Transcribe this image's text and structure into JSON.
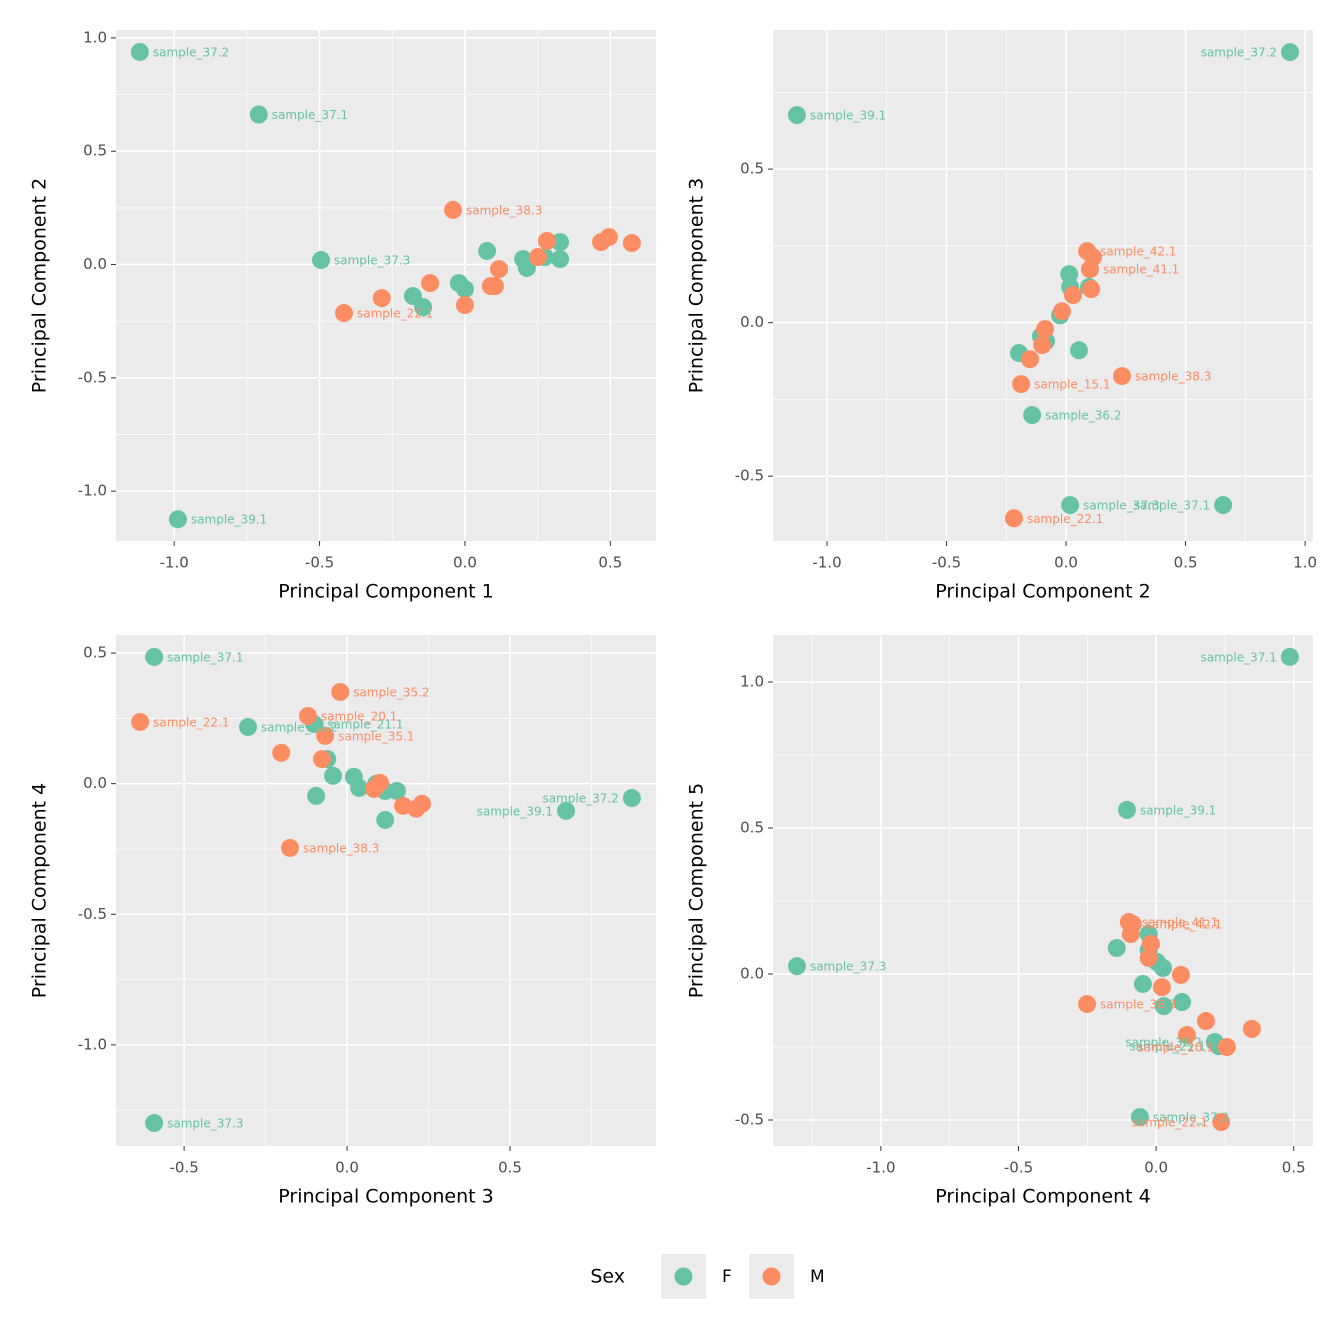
{
  "chart_data": [
    {
      "type": "scatter",
      "xlabel": "Principal Component 1",
      "ylabel": "Principal Component 2",
      "legend_title": "Sex",
      "xlim": [
        -1.2,
        0.657
      ],
      "ylim": [
        -1.22,
        1.035
      ],
      "xticks": [
        {
          "value": -1,
          "label": "-1.0"
        },
        -0.5,
        {
          "value": 0,
          "label": "0.0"
        },
        0.5
      ],
      "yticks": [
        {
          "value": -1,
          "label": "-1.0"
        },
        -0.5,
        {
          "value": 0,
          "label": "0.0"
        },
        0.5,
        {
          "value": 1,
          "label": "1.0"
        }
      ],
      "grid": true,
      "series": [
        {
          "name": "F",
          "color": "#66c2a5",
          "x": [
            -1.118,
            -0.709,
            -0.495,
            -0.987,
            -0.179,
            -0.144,
            -0.021,
            0.0,
            0.076,
            0.2,
            0.213,
            0.275,
            0.327,
            0.327
          ],
          "values": [
            0.938,
            0.662,
            0.02,
            -1.124,
            -0.139,
            -0.188,
            -0.082,
            -0.108,
            0.06,
            0.024,
            -0.015,
            0.033,
            0.099,
            0.024
          ],
          "labels": [
            "sample_37.2",
            "sample_37.1",
            "sample_37.3",
            "sample_39.1",
            null,
            null,
            null,
            null,
            null,
            null,
            null,
            null,
            null,
            null
          ]
        },
        {
          "name": "M",
          "color": "#fc8d62",
          "x": [
            -0.041,
            -0.416,
            -0.286,
            -0.12,
            0.0,
            0.089,
            0.103,
            0.117,
            0.251,
            0.282,
            0.468,
            0.495,
            0.574
          ],
          "values": [
            0.241,
            -0.214,
            -0.148,
            -0.082,
            -0.179,
            -0.095,
            -0.095,
            -0.02,
            0.033,
            0.104,
            0.099,
            0.121,
            0.095
          ],
          "labels": [
            "sample_38.3",
            "sample_22.1",
            null,
            null,
            null,
            null,
            null,
            null,
            null,
            null,
            null,
            null,
            null
          ]
        }
      ]
    },
    {
      "type": "scatter",
      "xlabel": "Principal Component 2",
      "ylabel": "Principal Component 3",
      "xlim": [
        -1.226,
        1.033
      ],
      "ylim": [
        -0.711,
        0.953
      ],
      "xticks": [
        {
          "value": -1,
          "label": "-1.0"
        },
        -0.5,
        {
          "value": 0,
          "label": "0.0"
        },
        0.5,
        {
          "value": 1,
          "label": "1.0"
        }
      ],
      "yticks": [
        -0.5,
        {
          "value": 0,
          "label": "0.0"
        },
        0.5
      ],
      "grid": true,
      "series": [
        {
          "name": "F",
          "color": "#66c2a5",
          "x": [
            0.937,
            -1.126,
            0.017,
            0.657,
            -0.142,
            -0.197,
            0.054,
            0.013,
            0.017,
            0.096,
            -0.025,
            -0.105,
            -0.084
          ],
          "values": [
            0.881,
            0.676,
            -0.594,
            -0.594,
            -0.301,
            -0.099,
            -0.09,
            0.158,
            0.116,
            0.116,
            0.024,
            -0.044,
            -0.06
          ],
          "labels": [
            "sample_37.2",
            "sample_39.1",
            "sample_37.3",
            "sample_37.1",
            "sample_36.2",
            null,
            null,
            null,
            null,
            null,
            null,
            null,
            null
          ]
        },
        {
          "name": "M",
          "color": "#fc8d62",
          "x": [
            0.088,
            0.113,
            0.1,
            0.105,
            0.029,
            -0.017,
            -0.088,
            -0.1,
            -0.151,
            -0.188,
            0.234,
            -0.218
          ],
          "values": [
            0.233,
            0.213,
            0.174,
            0.109,
            0.09,
            0.037,
            -0.021,
            -0.073,
            -0.119,
            -0.2,
            -0.174,
            -0.637
          ],
          "labels": [
            "sample_42.1",
            null,
            "sample_41.1",
            null,
            null,
            null,
            null,
            null,
            null,
            "sample_15.1",
            "sample_38.3",
            "sample_22.1"
          ]
        }
      ]
    },
    {
      "type": "scatter",
      "xlabel": "Principal Component 3",
      "ylabel": "Principal Component 4",
      "xlim": [
        -0.709,
        0.948
      ],
      "ylim": [
        -1.387,
        0.569
      ],
      "xticks": [
        -0.5,
        {
          "value": 0,
          "label": "0.0"
        },
        0.5
      ],
      "yticks": [
        {
          "value": -1,
          "label": "-1.0"
        },
        -0.5,
        {
          "value": 0,
          "label": "0.0"
        },
        0.5
      ],
      "grid": true,
      "series": [
        {
          "name": "F",
          "color": "#66c2a5",
          "x": [
            -0.592,
            -0.592,
            -0.304,
            -0.101,
            -0.061,
            -0.095,
            -0.043,
            0.021,
            0.037,
            0.089,
            0.117,
            0.153,
            0.117,
            0.672,
            0.874
          ],
          "values": [
            0.485,
            -1.299,
            0.217,
            0.228,
            0.094,
            -0.047,
            0.03,
            0.026,
            -0.016,
            -0.001,
            -0.028,
            -0.028,
            -0.139,
            -0.104,
            -0.055
          ],
          "labels": [
            "sample_37.1",
            "sample_37.3",
            "sample_36.2",
            "sample_21.1",
            null,
            null,
            null,
            null,
            null,
            null,
            null,
            null,
            null,
            "sample_39.1",
            "sample_37.2"
          ]
        },
        {
          "name": "M",
          "color": "#fc8d62",
          "x": [
            -0.635,
            -0.021,
            -0.12,
            -0.067,
            -0.202,
            -0.077,
            0.083,
            0.101,
            0.172,
            0.212,
            0.23,
            -0.175
          ],
          "values": [
            0.236,
            0.351,
            0.259,
            0.183,
            0.118,
            0.094,
            -0.02,
            0.003,
            -0.085,
            -0.096,
            -0.077,
            -0.246
          ],
          "labels": [
            "sample_22.1",
            "sample_35.2",
            "sample_20.1",
            "sample_35.1",
            null,
            null,
            null,
            null,
            null,
            null,
            null,
            "sample_38.3"
          ]
        }
      ]
    },
    {
      "type": "scatter",
      "xlabel": "Principal Component 4",
      "ylabel": "Principal Component 5",
      "xlim": [
        -1.392,
        0.57
      ],
      "ylim": [
        -0.589,
        1.161
      ],
      "xticks": [
        {
          "value": -1,
          "label": "-1.0"
        },
        -0.5,
        {
          "value": 0,
          "label": "0.0"
        },
        0.5
      ],
      "yticks": [
        -0.5,
        {
          "value": 0,
          "label": "0.0"
        },
        0.5,
        {
          "value": 1,
          "label": "1.0"
        }
      ],
      "grid": true,
      "series": [
        {
          "name": "F",
          "color": "#66c2a5",
          "x": [
            0.486,
            -0.106,
            -1.305,
            -0.059,
            -0.143,
            -0.027,
            -0.027,
            0.003,
            0.025,
            -0.048,
            0.028,
            0.094,
            0.213,
            0.228
          ],
          "values": [
            1.086,
            0.562,
            0.027,
            -0.49,
            0.089,
            0.137,
            0.082,
            0.041,
            0.021,
            -0.034,
            -0.11,
            -0.096,
            -0.233,
            -0.247
          ],
          "labels": [
            "sample_37.1",
            "sample_39.1",
            "sample_37.3",
            "sample_37.2",
            null,
            null,
            null,
            null,
            null,
            null,
            null,
            null,
            "sample_36.2",
            "sample_21.1"
          ]
        },
        {
          "name": "M",
          "color": "#fc8d62",
          "x": [
            -0.099,
            -0.085,
            -0.092,
            -0.019,
            -0.027,
            0.021,
            0.09,
            -0.251,
            0.181,
            0.348,
            0.112,
            0.257,
            0.236
          ],
          "values": [
            0.178,
            0.171,
            0.137,
            0.103,
            0.055,
            -0.045,
            -0.003,
            -0.103,
            -0.161,
            -0.188,
            -0.209,
            -0.25,
            -0.507
          ],
          "labels": [
            "sample_41.1",
            "sample_42.1",
            null,
            null,
            null,
            null,
            null,
            "sample_38.3",
            null,
            null,
            null,
            "sample_20.1",
            "sample_22.1"
          ]
        }
      ]
    }
  ]
}
